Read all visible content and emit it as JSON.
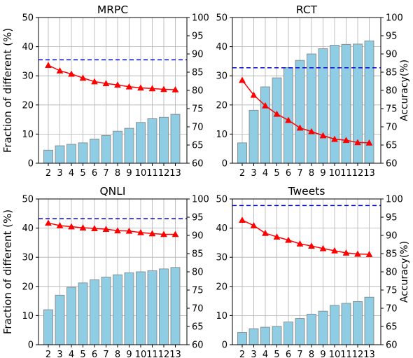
{
  "figure": {
    "left_ylabel": "Fraction of different (%)",
    "right_ylabel": "Accuracy(%)"
  },
  "chart_data": [
    {
      "type": "bar+line",
      "title": "MRPC",
      "categories": [
        "2",
        "3",
        "4",
        "5",
        "6",
        "7",
        "8",
        "9",
        "10",
        "11",
        "12",
        "13"
      ],
      "bar_values": [
        4.5,
        6.0,
        6.5,
        7.0,
        8.3,
        9.5,
        11.0,
        12.0,
        14.0,
        15.3,
        15.8,
        16.8
      ],
      "line_values": [
        86.9,
        85.4,
        84.5,
        83.4,
        82.4,
        81.9,
        81.5,
        81.0,
        80.7,
        80.5,
        80.3,
        80.2
      ],
      "reference_line": 88.4,
      "ylim_left": [
        0,
        50
      ],
      "yticks_left": [
        0,
        10,
        20,
        30,
        40,
        50
      ],
      "ylim_right": [
        60,
        100
      ],
      "yticks_right": [
        60,
        65,
        70,
        75,
        80,
        85,
        90,
        95,
        100
      ],
      "show_left_label": true,
      "show_right_label": false
    },
    {
      "type": "bar+line",
      "title": "RCT",
      "categories": [
        "2",
        "3",
        "4",
        "5",
        "6",
        "7",
        "8",
        "9",
        "10",
        "11",
        "12",
        "13"
      ],
      "bar_values": [
        7.0,
        18.2,
        26.2,
        29.3,
        32.8,
        35.3,
        37.5,
        39.3,
        40.5,
        40.8,
        40.9,
        42.0
      ],
      "line_values": [
        82.8,
        78.7,
        75.8,
        73.5,
        71.8,
        69.7,
        68.7,
        67.6,
        66.6,
        66.3,
        65.7,
        65.6
      ],
      "reference_line": 86.2,
      "ylim_left": [
        0,
        50
      ],
      "yticks_left": [
        0,
        10,
        20,
        30,
        40,
        50
      ],
      "ylim_right": [
        60,
        100
      ],
      "yticks_right": [
        60,
        65,
        70,
        75,
        80,
        85,
        90,
        95,
        100
      ],
      "show_left_label": false,
      "show_right_label": true
    },
    {
      "type": "bar+line",
      "title": "QNLI",
      "categories": [
        "2",
        "3",
        "4",
        "5",
        "6",
        "7",
        "8",
        "9",
        "10",
        "11",
        "12",
        "13"
      ],
      "bar_values": [
        12.0,
        17.0,
        19.7,
        21.2,
        22.3,
        23.2,
        24.0,
        24.7,
        25.0,
        25.4,
        26.0,
        26.5
      ],
      "line_values": [
        93.4,
        92.7,
        92.4,
        92.1,
        91.9,
        91.7,
        91.3,
        91.2,
        90.8,
        90.5,
        90.3,
        90.3
      ],
      "reference_line": 94.6,
      "ylim_left": [
        0,
        50
      ],
      "yticks_left": [
        0,
        10,
        20,
        30,
        40,
        50
      ],
      "ylim_right": [
        60,
        100
      ],
      "yticks_right": [
        60,
        65,
        70,
        75,
        80,
        85,
        90,
        95,
        100
      ],
      "show_left_label": true,
      "show_right_label": false
    },
    {
      "type": "bar+line",
      "title": "Tweets",
      "categories": [
        "2",
        "3",
        "4",
        "5",
        "6",
        "7",
        "8",
        "9",
        "10",
        "11",
        "12",
        "13"
      ],
      "bar_values": [
        4.2,
        5.5,
        6.0,
        6.3,
        7.8,
        9.0,
        10.5,
        11.5,
        13.5,
        14.2,
        14.8,
        16.3
      ],
      "line_values": [
        94.2,
        92.7,
        90.6,
        89.6,
        88.7,
        87.7,
        87.1,
        86.4,
        85.8,
        85.2,
        84.9,
        84.8
      ],
      "reference_line": 98.2,
      "ylim_left": [
        0,
        50
      ],
      "yticks_left": [
        0,
        10,
        20,
        30,
        40,
        50
      ],
      "ylim_right": [
        60,
        100
      ],
      "yticks_right": [
        60,
        65,
        70,
        75,
        80,
        85,
        90,
        95,
        100
      ],
      "show_left_label": false,
      "show_right_label": true
    }
  ],
  "colors": {
    "bar_fill": "#8ecde4",
    "bar_edge": "#7f7f7f",
    "line": "#ff0000",
    "reference": "#0000dd",
    "grid": "#b0b0b0",
    "axis": "#000000"
  }
}
